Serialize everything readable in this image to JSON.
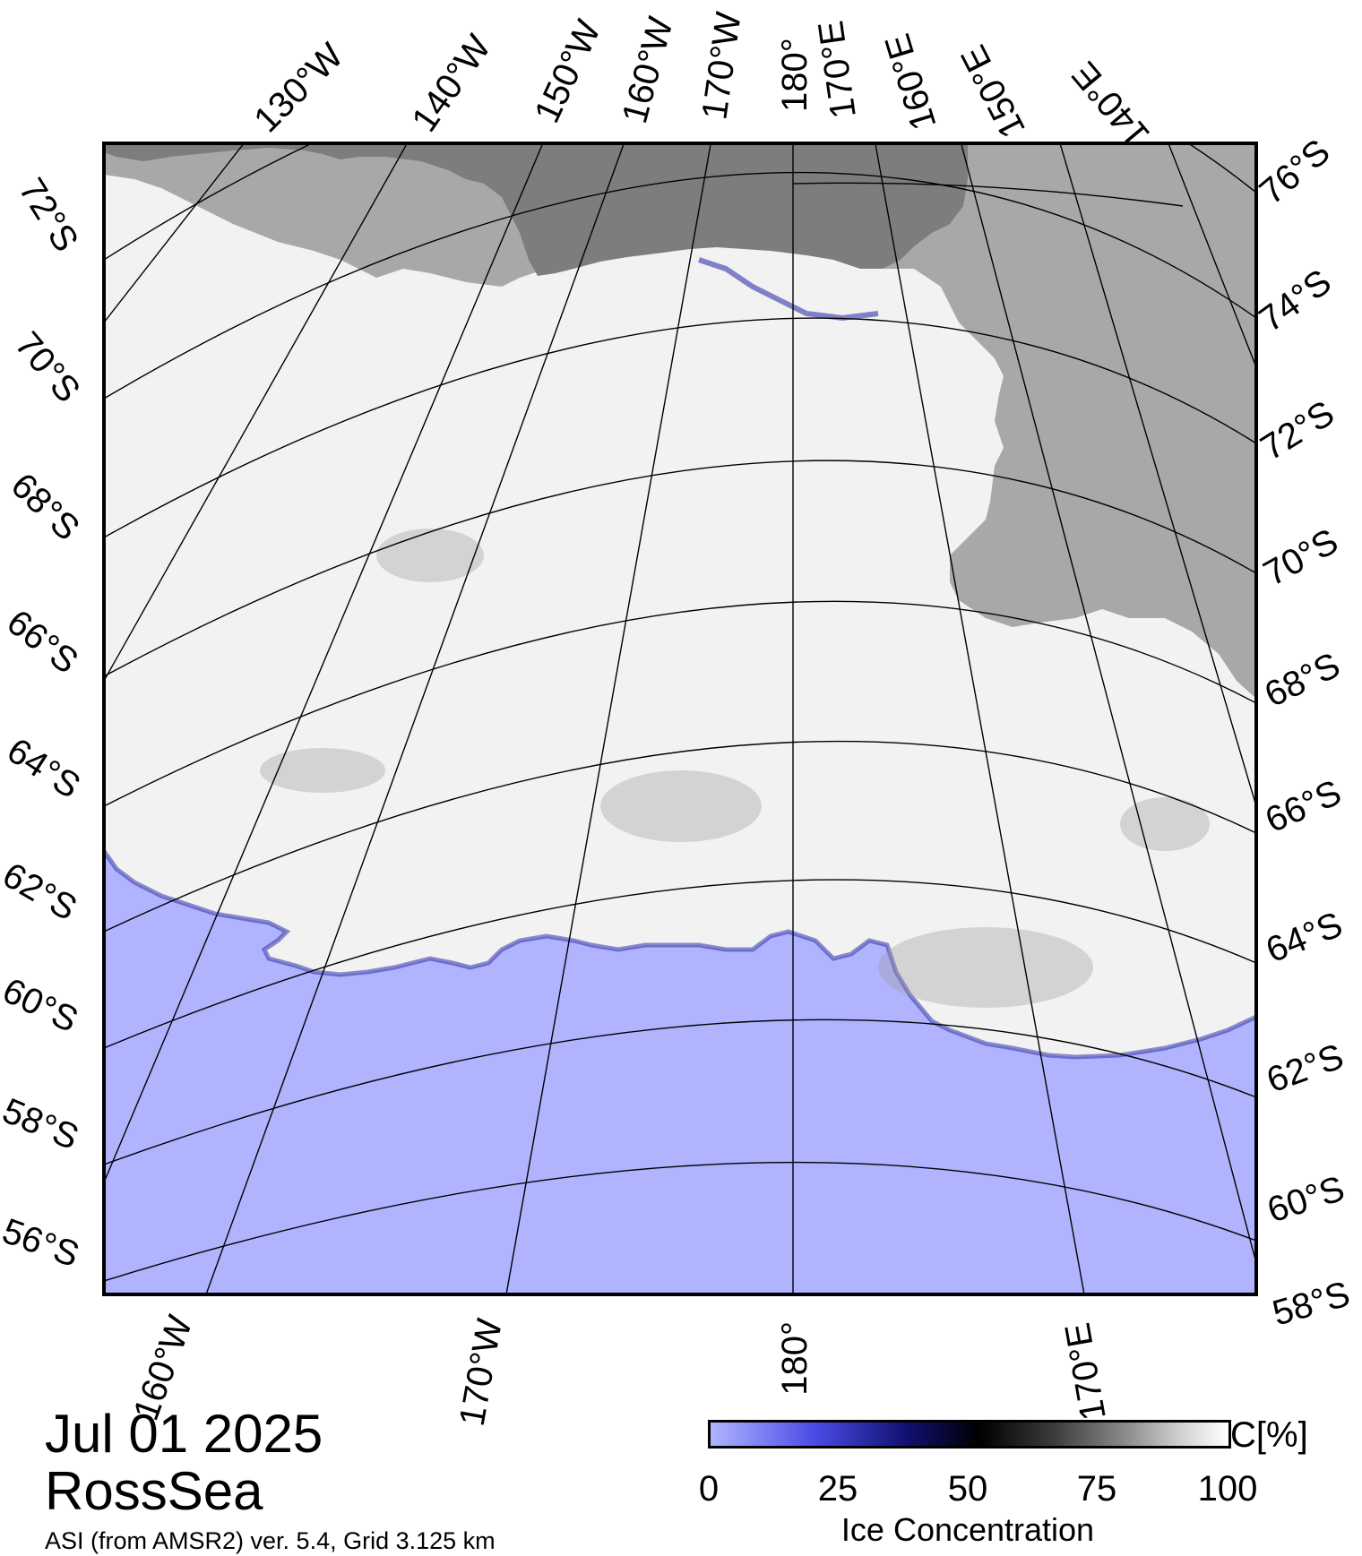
{
  "map": {
    "date": "Jul 01 2025",
    "region": "RossSea",
    "source": "ASI (from AMSR2) ver. 5.4,  Grid 3.125 km",
    "colors": {
      "ocean": "#b0b4ff",
      "ice": "#f2f2f2",
      "land_dark": "#7d7d7d",
      "land_light": "#a8a8a8",
      "ice_edge": "#3333aa"
    },
    "top_longitudes": [
      "130°W",
      "140°W",
      "150°W",
      "160°W",
      "170°W",
      "180°",
      "170°E",
      "160°E",
      "150°E",
      "140°E"
    ],
    "left_latitudes": [
      "72°S",
      "70°S",
      "68°S",
      "66°S",
      "64°S",
      "62°S",
      "60°S",
      "58°S",
      "56°S"
    ],
    "right_latitudes": [
      "76°S",
      "74°S",
      "72°S",
      "70°S",
      "68°S",
      "66°S",
      "64°S",
      "62°S",
      "60°S",
      "58°S"
    ],
    "bottom_longitudes": [
      "160°W",
      "170°W",
      "180°",
      "170°E"
    ]
  },
  "colorbar": {
    "title": "Ice Concentration",
    "unit": "C[%]",
    "ticks": [
      "0",
      "25",
      "50",
      "75",
      "100"
    ],
    "tick_values": [
      0,
      25,
      50,
      75,
      100
    ]
  }
}
